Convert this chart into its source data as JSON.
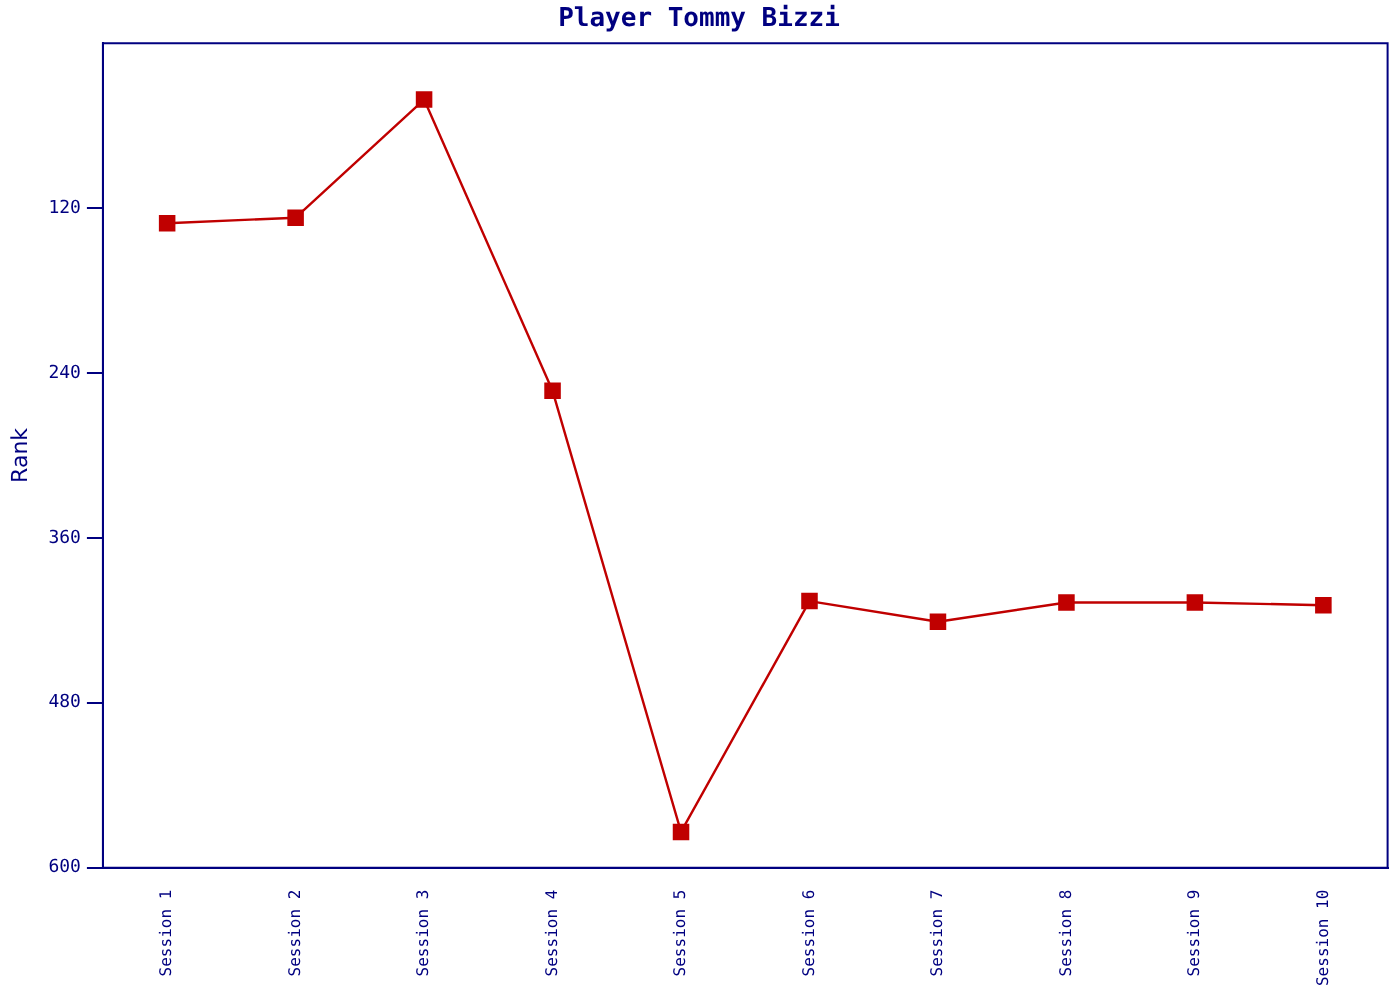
{
  "chart_data": {
    "type": "line",
    "title": "Player Tommy Bizzi",
    "ylabel": "Rank",
    "categories": [
      "Session 1",
      "Session 2",
      "Session 3",
      "Session 4",
      "Session 5",
      "Session 6",
      "Session 7",
      "Session 8",
      "Session 9",
      "Session 10"
    ],
    "series": [
      {
        "color": "#c00000",
        "values": [
          131,
          127,
          41,
          253,
          574,
          406,
          421,
          407,
          407,
          409
        ]
      }
    ],
    "ylim": [
      600,
      0
    ],
    "yticks": [
      120,
      240,
      360,
      480,
      600
    ],
    "grid": false,
    "legend": false,
    "marker": "square",
    "line_style": "solid"
  }
}
